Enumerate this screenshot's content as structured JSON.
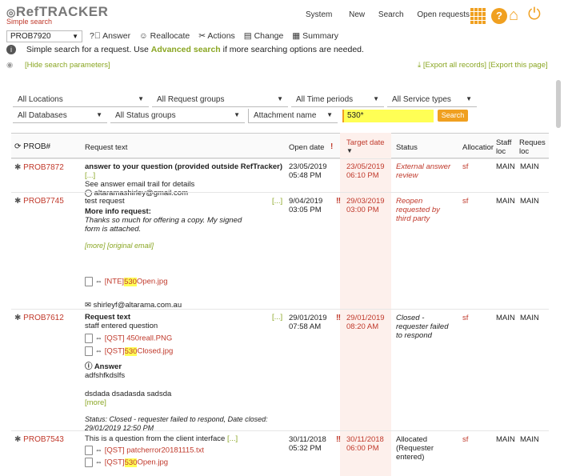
{
  "app": {
    "logo_main": "RefTRACKER",
    "logo_sub": "Simple search",
    "top_links": [
      "System",
      "New",
      "Search",
      "Open requests"
    ],
    "request_select": "PROB7920"
  },
  "toolbar": {
    "answer": "Answer",
    "reallocate": "Reallocate",
    "actions": "Actions",
    "change": "Change",
    "summary": "Summary"
  },
  "info": {
    "text_pre": "Simple search for a request. Use ",
    "link": "Advanced search",
    "text_post": " if more searching options are needed."
  },
  "params": {
    "hide": "[Hide search parameters]",
    "export_all": "[Export all records]",
    "export_page": "[Export this page]"
  },
  "filters": {
    "locations": "All Locations",
    "request_groups": "All Request groups",
    "time_periods": "All Time periods",
    "service_types": "All Service types",
    "databases": "All Databases",
    "status_groups": "All Status groups",
    "attachment": "Attachment name",
    "search_value": "530*",
    "search_button": "Search"
  },
  "table": {
    "headers": {
      "prob": "PROB#",
      "request": "Request text",
      "open": "Open date",
      "target": "Target date",
      "status": "Status",
      "alloc": "Allocatior",
      "staff": "Staff loc",
      "req": "Reques loc"
    },
    "rows": [
      {
        "id": "PROB7872",
        "title": "answer to your question (provided outside RefTracker)",
        "more": "[...]",
        "line2": "See answer email trail for details",
        "line3": "altaramashirley@gmail.com",
        "open_date": "23/05/2019",
        "open_time": "05:48 PM",
        "target_date": "23/05/2019",
        "target_time": "06:10 PM",
        "status": "External answer review",
        "alloc": "sf",
        "staff": "MAIN",
        "req": "MAIN"
      },
      {
        "id": "PROB7745",
        "title": "test request",
        "more": "[...]",
        "info_label": "More info request:",
        "info_text": "Thanks so much for offering a copy. My signed form is attached.",
        "links": "[more]  [original email]",
        "file_pre": "[NTE]",
        "file_hl": "530",
        "file_post": "Open.jpg",
        "email": "shirleyf@altarama.com.au",
        "open_date": "9/04/2019",
        "open_time": "03:05 PM",
        "target_date": "29/03/2019",
        "target_time": "03:00 PM",
        "status": "Reopen requested by third party",
        "alloc": "sf",
        "staff": "MAIN",
        "req": "MAIN"
      },
      {
        "id": "PROB7612",
        "title": "Request text",
        "more": "[...]",
        "line2": "staff entered question",
        "file1": "[QST]  450reall.PNG",
        "file2_pre": "[QST]",
        "file2_hl": "530",
        "file2_post": "Closed.jpg",
        "answer_label": "Answer",
        "answer1": "adfshfkdslfs",
        "answer2": "dsdada dsadasda sadsda",
        "more2": "[more]",
        "status_note": "Status: Closed - requester failed to respond, Date closed: 29/01/2019 12:50 PM",
        "open_date": "29/01/2019",
        "open_time": "07:58 AM",
        "target_date": "29/01/2019",
        "target_time": "08:20 AM",
        "status": "Closed - requester failed to respond",
        "alloc": "sf",
        "staff": "MAIN",
        "req": "MAIN"
      },
      {
        "id": "PROB7543",
        "title": "This is a question from the client interface",
        "more": "[...]",
        "file1": "[QST]  patcherror20181115.txt",
        "file2_pre": "[QST]",
        "file2_hl": "530",
        "file2_post": "Open.jpg",
        "open_date": "30/11/2018",
        "open_time": "05:32 PM",
        "target_date": "30/11/2018",
        "target_time": "06:00 PM",
        "status": "Allocated (Requester entered)",
        "alloc": "sf",
        "staff": "MAIN",
        "req": "MAIN"
      }
    ]
  },
  "colors": {
    "accent": "#c0392b",
    "green": "#8aa623",
    "orange": "#f0a020",
    "highlight": "#ffff55"
  }
}
